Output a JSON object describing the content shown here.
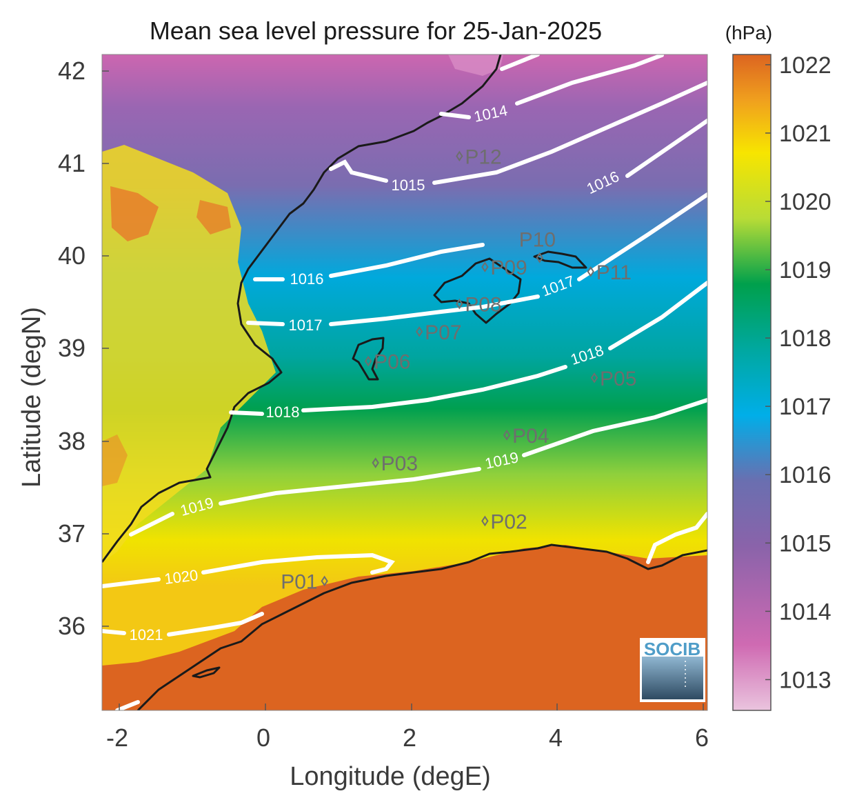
{
  "map": {
    "title": "Mean sea level pressure for 25-Jan-2025",
    "xlabel": "Longitude (degE)",
    "ylabel": "Latitude (degN)",
    "x_ticks": [
      "-2",
      "0",
      "2",
      "4",
      "6"
    ],
    "y_ticks": [
      "42",
      "41",
      "40",
      "39",
      "38",
      "37",
      "36"
    ],
    "x_range": [
      -2.2,
      6.1
    ],
    "y_range": [
      35.1,
      42.2
    ]
  },
  "colorbar": {
    "unit": "(hPa)",
    "ticks": [
      "1022",
      "1021",
      "1020",
      "1019",
      "1018",
      "1017",
      "1016",
      "1015",
      "1014",
      "1013"
    ],
    "range": [
      1012.55,
      1022.15
    ],
    "colors": [
      "#e9c2dd",
      "#cc66b0",
      "#7a5ea6",
      "#00aee6",
      "#00a58f",
      "#00a04a",
      "#c8e032",
      "#f5e400",
      "#f0a21e",
      "#dc6420"
    ]
  },
  "contours": [
    {
      "label": "1014"
    },
    {
      "label": "1015"
    },
    {
      "label": "1016"
    },
    {
      "label": "1016"
    },
    {
      "label": "1017"
    },
    {
      "label": "1017"
    },
    {
      "label": "1018"
    },
    {
      "label": "1018"
    },
    {
      "label": "1019"
    },
    {
      "label": "1019"
    },
    {
      "label": "1020"
    },
    {
      "label": "1021"
    }
  ],
  "stations": [
    {
      "label": "P01",
      "lon": 0.85,
      "lat": 36.5
    },
    {
      "label": "P02",
      "lon": 3.05,
      "lat": 37.15
    },
    {
      "label": "P03",
      "lon": 1.55,
      "lat": 37.78
    },
    {
      "label": "P04",
      "lon": 3.35,
      "lat": 38.08
    },
    {
      "label": "P05",
      "lon": 4.55,
      "lat": 38.7
    },
    {
      "label": "P06",
      "lon": 1.45,
      "lat": 38.88
    },
    {
      "label": "P07",
      "lon": 2.15,
      "lat": 39.2
    },
    {
      "label": "P08",
      "lon": 2.7,
      "lat": 39.5
    },
    {
      "label": "P09",
      "lon": 3.05,
      "lat": 39.9
    },
    {
      "label": "P10",
      "lon": 3.8,
      "lat": 40.0
    },
    {
      "label": "P11",
      "lon": 4.5,
      "lat": 39.85
    },
    {
      "label": "P12",
      "lon": 2.7,
      "lat": 41.1
    }
  ],
  "logo": {
    "text": "SOCIB"
  }
}
